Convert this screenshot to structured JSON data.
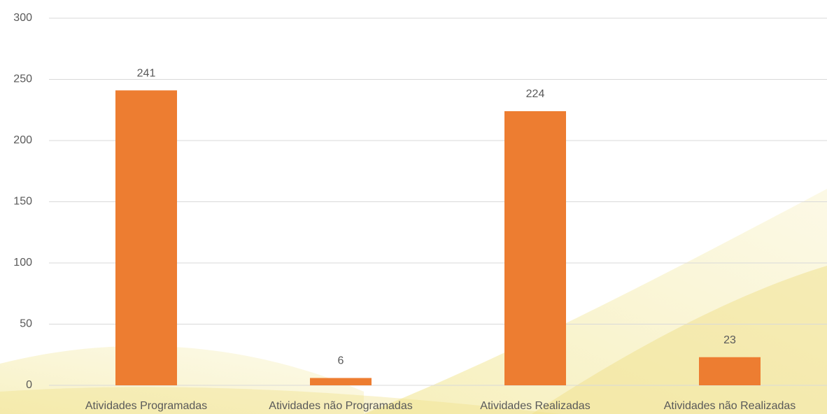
{
  "chart_data": {
    "type": "bar",
    "categories": [
      "Atividades Programadas",
      "Atividades não Programadas",
      "Atividades Realizadas",
      "Atividades não Realizadas"
    ],
    "values": [
      241,
      6,
      224,
      23
    ],
    "color": "#ed7d31",
    "ylim": [
      0,
      300
    ],
    "yticks": [
      0,
      50,
      100,
      150,
      200,
      250,
      300
    ],
    "grid": true
  }
}
